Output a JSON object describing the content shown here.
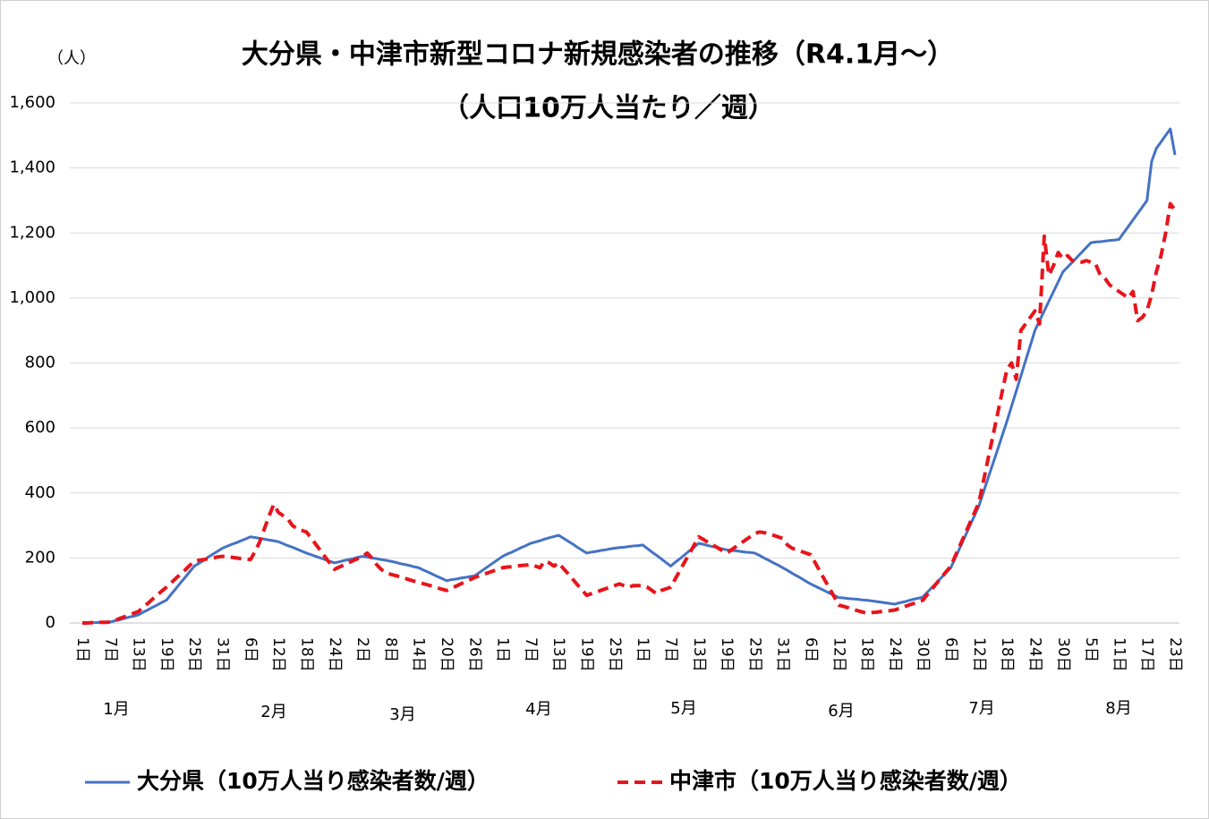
{
  "chart_data": {
    "type": "line",
    "title": "大分県・中津市新型コロナ新規感染者の推移（R4.1月～）",
    "subtitle": "（人口10万人当たり／週）",
    "y_label": "（人）",
    "categories": [
      "1日",
      null,
      null,
      null,
      null,
      null,
      "7日",
      null,
      null,
      null,
      null,
      null,
      "13日",
      null,
      null,
      null,
      null,
      null,
      "19日",
      null,
      null,
      null,
      null,
      null,
      "25日",
      null,
      null,
      null,
      null,
      null,
      "31日",
      null,
      null,
      null,
      null,
      null,
      "6日",
      null,
      null,
      null,
      null,
      null,
      "12日",
      null,
      null,
      null,
      null,
      null,
      "18日",
      null,
      null,
      null,
      null,
      null,
      "24日",
      null,
      null,
      null,
      null,
      null,
      "2日",
      null,
      null,
      null,
      null,
      null,
      "8日",
      null,
      null,
      null,
      null,
      null,
      "14日",
      null,
      null,
      null,
      null,
      null,
      "20日",
      null,
      null,
      null,
      null,
      null,
      "26日",
      null,
      null,
      null,
      null,
      null,
      "1日",
      null,
      null,
      null,
      null,
      null,
      "7日",
      null,
      null,
      null,
      null,
      null,
      "13日",
      null,
      null,
      null,
      null,
      null,
      "19日",
      null,
      null,
      null,
      null,
      null,
      "25日",
      null,
      null,
      null,
      null,
      null,
      "1日",
      null,
      null,
      null,
      null,
      null,
      "7日",
      null,
      null,
      null,
      null,
      null,
      "13日",
      null,
      null,
      null,
      null,
      null,
      "19日",
      null,
      null,
      null,
      null,
      null,
      "25日",
      null,
      null,
      null,
      null,
      null,
      "31日",
      null,
      null,
      null,
      null,
      null,
      "6日",
      null,
      null,
      null,
      null,
      null,
      "12日",
      null,
      null,
      null,
      null,
      null,
      "18日",
      null,
      null,
      null,
      null,
      null,
      "24日",
      null,
      null,
      null,
      null,
      null,
      "30日",
      null,
      null,
      null,
      null,
      null,
      "6日",
      null,
      null,
      null,
      null,
      null,
      "12日",
      null,
      null,
      null,
      null,
      null,
      "18日",
      null,
      null,
      null,
      null,
      null,
      "24日",
      null,
      null,
      null,
      null,
      null,
      "30日",
      null,
      null,
      null,
      null,
      null,
      "5日",
      null,
      null,
      null,
      null,
      null,
      "11日",
      null,
      null,
      null,
      null,
      null,
      "17日",
      null,
      null,
      null,
      null,
      null,
      "23日"
    ],
    "month_labels": [
      "1月",
      "2月",
      "3月",
      "4月",
      "5月",
      "6月",
      "7月",
      "8月"
    ],
    "series": [
      {
        "name": "大分県（10万人当り感染者数/週）",
        "color": "#4472c4",
        "dash": false,
        "values": [
          0,
          0,
          1,
          1,
          2,
          2,
          3,
          7,
          10,
          14,
          18,
          21,
          25,
          33,
          40,
          48,
          55,
          63,
          70,
          88,
          105,
          123,
          140,
          158,
          175,
          184,
          193,
          203,
          212,
          221,
          230,
          236,
          242,
          247,
          253,
          259,
          265,
          263,
          260,
          258,
          255,
          253,
          250,
          244,
          238,
          233,
          227,
          221,
          215,
          210,
          205,
          200,
          195,
          190,
          185,
          188,
          192,
          195,
          198,
          202,
          205,
          203,
          200,
          198,
          195,
          193,
          190,
          187,
          183,
          180,
          177,
          173,
          170,
          163,
          157,
          150,
          143,
          137,
          130,
          133,
          135,
          138,
          140,
          143,
          145,
          155,
          165,
          175,
          185,
          195,
          205,
          212,
          218,
          225,
          232,
          238,
          245,
          249,
          253,
          258,
          262,
          266,
          270,
          261,
          252,
          243,
          233,
          224,
          215,
          218,
          220,
          223,
          225,
          228,
          230,
          232,
          233,
          235,
          237,
          238,
          240,
          229,
          218,
          208,
          197,
          186,
          175,
          187,
          198,
          210,
          222,
          233,
          245,
          242,
          238,
          235,
          232,
          228,
          225,
          223,
          222,
          220,
          218,
          217,
          215,
          208,
          200,
          193,
          185,
          178,
          170,
          162,
          153,
          145,
          137,
          128,
          120,
          113,
          106,
          99,
          92,
          85,
          78,
          77,
          75,
          74,
          73,
          71,
          70,
          68,
          66,
          64,
          62,
          60,
          58,
          62,
          65,
          69,
          73,
          76,
          80,
          95,
          110,
          125,
          140,
          155,
          170,
          202,
          233,
          265,
          297,
          328,
          360,
          403,
          447,
          490,
          533,
          577,
          620,
          667,
          713,
          760,
          807,
          853,
          900,
          930,
          960,
          990,
          1020,
          1050,
          1080,
          1095,
          1110,
          1125,
          1140,
          1155,
          1170,
          1172,
          1173,
          1175,
          1177,
          1178,
          1180,
          1200,
          1220,
          1240,
          1260,
          1280,
          1300,
          1420,
          1460,
          1480,
          1500,
          1520,
          1440
        ]
      },
      {
        "name": "中津市（10万人当り感染者数/週）",
        "color": "#e8141b",
        "dash": true,
        "values": [
          0,
          0,
          1,
          1,
          2,
          2,
          3,
          8,
          14,
          19,
          24,
          30,
          35,
          48,
          60,
          73,
          85,
          98,
          110,
          123,
          137,
          150,
          163,
          177,
          190,
          193,
          195,
          198,
          200,
          203,
          205,
          203,
          202,
          200,
          198,
          197,
          195,
          220,
          250,
          290,
          330,
          365,
          340,
          330,
          320,
          300,
          290,
          285,
          280,
          261,
          242,
          223,
          203,
          184,
          165,
          172,
          178,
          185,
          192,
          198,
          205,
          215,
          200,
          180,
          165,
          155,
          150,
          146,
          142,
          138,
          133,
          129,
          125,
          121,
          117,
          113,
          108,
          104,
          100,
          107,
          113,
          120,
          127,
          133,
          140,
          145,
          150,
          155,
          160,
          165,
          170,
          172,
          173,
          175,
          177,
          178,
          180,
          175,
          170,
          190,
          185,
          175,
          185,
          168,
          152,
          135,
          118,
          102,
          85,
          90,
          95,
          100,
          105,
          110,
          115,
          120,
          115,
          110,
          115,
          115,
          115,
          110,
          100,
          90,
          100,
          105,
          110,
          136,
          162,
          188,
          213,
          239,
          265,
          257,
          248,
          240,
          232,
          223,
          215,
          225,
          235,
          245,
          255,
          265,
          275,
          280,
          278,
          275,
          270,
          265,
          260,
          240,
          230,
          225,
          220,
          215,
          210,
          184,
          158,
          132,
          107,
          81,
          55,
          51,
          47,
          42,
          38,
          34,
          30,
          32,
          33,
          35,
          37,
          38,
          40,
          45,
          50,
          55,
          60,
          65,
          70,
          88,
          105,
          123,
          140,
          158,
          175,
          208,
          240,
          273,
          305,
          338,
          370,
          438,
          507,
          575,
          643,
          712,
          780,
          800,
          750,
          900,
          920,
          940,
          960,
          920,
          1190,
          1070,
          1100,
          1140,
          1120,
          1130,
          1115,
          1110,
          1110,
          1115,
          1110,
          1105,
          1070,
          1060,
          1040,
          1030,
          1020,
          1010,
          1000,
          1020,
          930,
          940,
          960,
          1010,
          1080,
          1130,
          1200,
          1290,
          1270
        ]
      }
    ],
    "ylim": [
      0,
      1600
    ],
    "yticks": [
      0,
      200,
      400,
      600,
      800,
      {
        "value": 1000,
        "label": "1,000"
      },
      {
        "value": 1200,
        "label": "1,200"
      },
      {
        "value": 1400,
        "label": "1,400"
      },
      {
        "value": 1600,
        "label": "1,600"
      }
    ],
    "grid": true,
    "legend": "bottom"
  }
}
